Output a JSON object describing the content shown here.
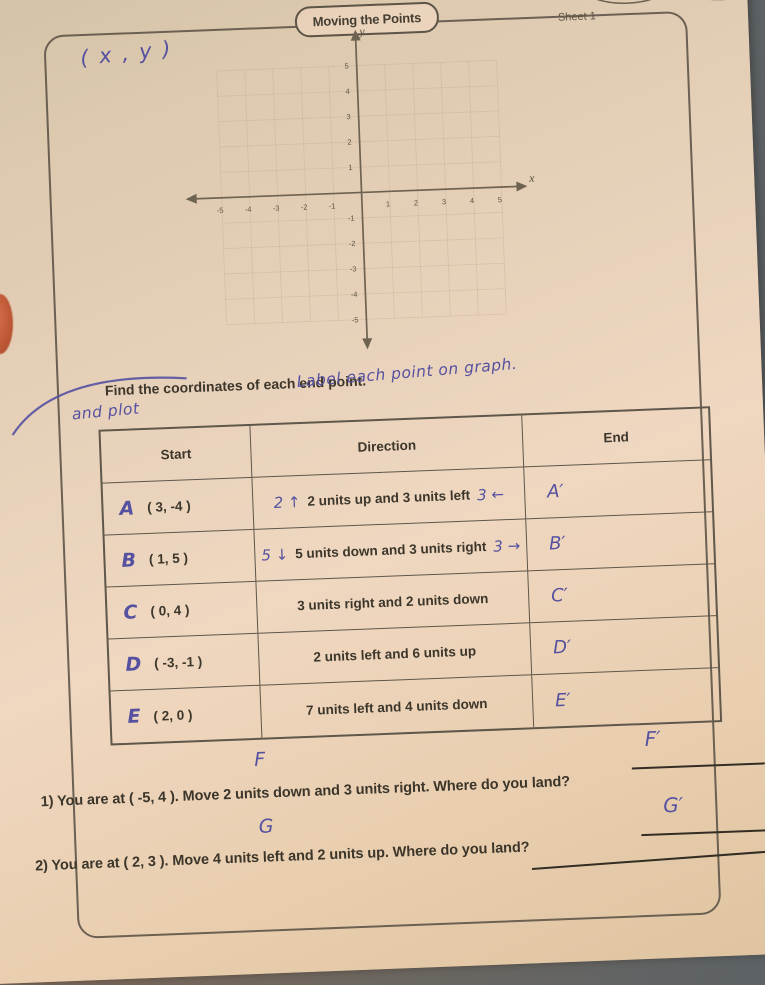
{
  "colors": {
    "ink": "#5551a0",
    "print": "#3c362b",
    "paper": "#ecd5bd",
    "frame": "#6b6052"
  },
  "header": {
    "title": "Moving the Points",
    "sheet": "Sheet 1"
  },
  "annotations": {
    "xy": "( x , y )",
    "label_note": "Label each point on graph.",
    "and_plot": "and plot",
    "q1_point": "F",
    "q1_answer": "F′",
    "q2_point": "G",
    "q2_answer": "G′"
  },
  "instruction": "Find the coordinates of each end point.",
  "graph": {
    "type": "scatter",
    "title": "",
    "xlabel": "x",
    "ylabel": "y",
    "xlim": [
      -5,
      5
    ],
    "ylim": [
      -5,
      5
    ],
    "x_ticks": [
      -5,
      -4,
      -3,
      -2,
      -1,
      1,
      2,
      3,
      4,
      5
    ],
    "y_ticks": [
      -5,
      -4,
      -3,
      -2,
      -1,
      1,
      2,
      3,
      4,
      5
    ],
    "grid": true,
    "points": []
  },
  "table": {
    "headers": [
      "Start",
      "Direction",
      "End"
    ],
    "rows": [
      {
        "label": "A",
        "start": "( 3, -4 )",
        "pre": "2 ↑",
        "direction": "2 units up and 3 units left",
        "post": "3 ←",
        "end": "A′"
      },
      {
        "label": "B",
        "start": "( 1, 5 )",
        "pre": "5 ↓",
        "direction": "5 units down and 3 units right",
        "post": "3 →",
        "end": "B′"
      },
      {
        "label": "C",
        "start": "( 0, 4 )",
        "pre": "",
        "direction": "3 units right and 2 units down",
        "post": "",
        "end": "C′"
      },
      {
        "label": "D",
        "start": "( -3, -1 )",
        "pre": "",
        "direction": "2 units left and 6 units up",
        "post": "",
        "end": "D′"
      },
      {
        "label": "E",
        "start": "( 2, 0 )",
        "pre": "",
        "direction": "7 units left and 4 units down",
        "post": "",
        "end": "E′"
      }
    ]
  },
  "questions": [
    {
      "label": "1) You are at ( -5, 4 ). Move 2 units down and 3 units right. Where do you land?"
    },
    {
      "label": "2) You are at ( 2, 3 ). Move 4 units left and 2 units up. Where do you land?"
    }
  ]
}
